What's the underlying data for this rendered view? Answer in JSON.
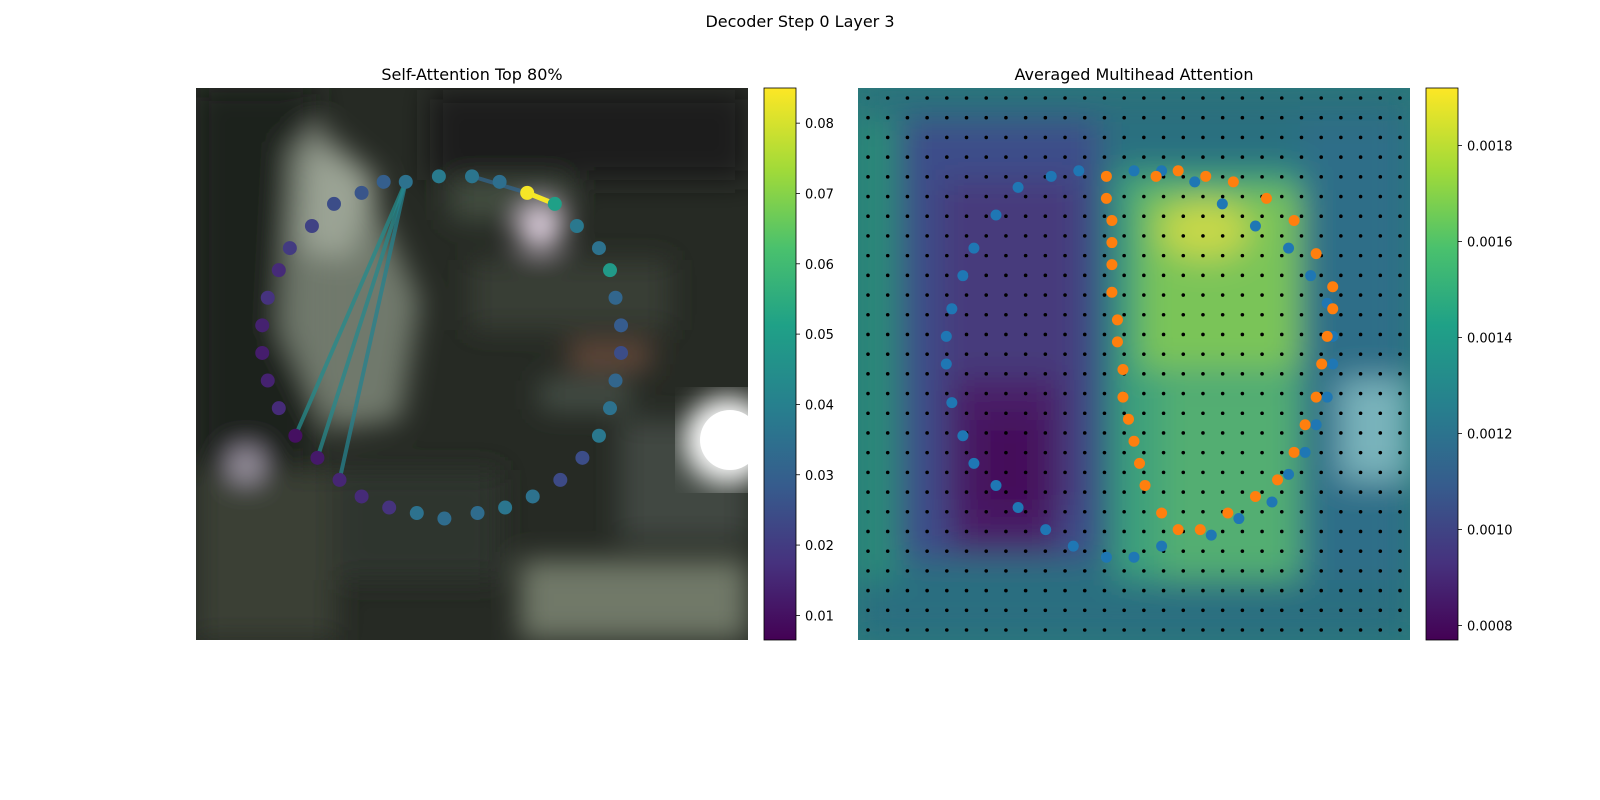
{
  "figure": {
    "title": "Decoder Step 0 Layer 3"
  },
  "chart_data": [
    {
      "type": "scatter",
      "title": "Self-Attention Top 80%",
      "background": "blurred photo image",
      "polygon_points": [
        {
          "x": 0.38,
          "y": 0.17,
          "v": 0.036
        },
        {
          "x": 0.44,
          "y": 0.16,
          "v": 0.039
        },
        {
          "x": 0.5,
          "y": 0.16,
          "v": 0.037
        },
        {
          "x": 0.55,
          "y": 0.17,
          "v": 0.035
        },
        {
          "x": 0.6,
          "y": 0.19,
          "v": 0.084
        },
        {
          "x": 0.65,
          "y": 0.21,
          "v": 0.051
        },
        {
          "x": 0.69,
          "y": 0.25,
          "v": 0.038
        },
        {
          "x": 0.73,
          "y": 0.29,
          "v": 0.036
        },
        {
          "x": 0.75,
          "y": 0.33,
          "v": 0.049
        },
        {
          "x": 0.76,
          "y": 0.38,
          "v": 0.032
        },
        {
          "x": 0.77,
          "y": 0.43,
          "v": 0.029
        },
        {
          "x": 0.77,
          "y": 0.48,
          "v": 0.025
        },
        {
          "x": 0.76,
          "y": 0.53,
          "v": 0.032
        },
        {
          "x": 0.75,
          "y": 0.58,
          "v": 0.036
        },
        {
          "x": 0.73,
          "y": 0.63,
          "v": 0.038
        },
        {
          "x": 0.7,
          "y": 0.67,
          "v": 0.025
        },
        {
          "x": 0.66,
          "y": 0.71,
          "v": 0.024
        },
        {
          "x": 0.61,
          "y": 0.74,
          "v": 0.036
        },
        {
          "x": 0.56,
          "y": 0.76,
          "v": 0.037
        },
        {
          "x": 0.51,
          "y": 0.77,
          "v": 0.034
        },
        {
          "x": 0.45,
          "y": 0.78,
          "v": 0.034
        },
        {
          "x": 0.4,
          "y": 0.77,
          "v": 0.036
        },
        {
          "x": 0.35,
          "y": 0.76,
          "v": 0.018
        },
        {
          "x": 0.3,
          "y": 0.74,
          "v": 0.016
        },
        {
          "x": 0.26,
          "y": 0.71,
          "v": 0.015
        },
        {
          "x": 0.22,
          "y": 0.67,
          "v": 0.012
        },
        {
          "x": 0.18,
          "y": 0.63,
          "v": 0.01
        },
        {
          "x": 0.15,
          "y": 0.58,
          "v": 0.016
        },
        {
          "x": 0.13,
          "y": 0.53,
          "v": 0.014
        },
        {
          "x": 0.12,
          "y": 0.48,
          "v": 0.013
        },
        {
          "x": 0.12,
          "y": 0.43,
          "v": 0.014
        },
        {
          "x": 0.13,
          "y": 0.38,
          "v": 0.018
        },
        {
          "x": 0.15,
          "y": 0.33,
          "v": 0.016
        },
        {
          "x": 0.17,
          "y": 0.29,
          "v": 0.02
        },
        {
          "x": 0.21,
          "y": 0.25,
          "v": 0.022
        },
        {
          "x": 0.25,
          "y": 0.21,
          "v": 0.025
        },
        {
          "x": 0.3,
          "y": 0.19,
          "v": 0.027
        },
        {
          "x": 0.34,
          "y": 0.17,
          "v": 0.03
        }
      ],
      "attention_edges": [
        {
          "from": 0,
          "to": 26,
          "v": 0.044
        },
        {
          "from": 0,
          "to": 25,
          "v": 0.043
        },
        {
          "from": 0,
          "to": 24,
          "v": 0.041
        },
        {
          "from": 4,
          "to": 5,
          "v": 0.084
        },
        {
          "from": 2,
          "to": 4,
          "v": 0.032
        }
      ],
      "colorbar": {
        "range": [
          0.0065,
          0.085
        ],
        "ticks": [
          "0.01",
          "0.02",
          "0.03",
          "0.04",
          "0.05",
          "0.06",
          "0.07",
          "0.08"
        ],
        "tick_values": [
          0.01,
          0.02,
          0.03,
          0.04,
          0.05,
          0.06,
          0.07,
          0.08
        ]
      }
    },
    {
      "type": "heatmap",
      "title": "Averaged Multihead Attention",
      "grid": {
        "rows": 28,
        "cols": 28
      },
      "series": [
        {
          "color": "#1f77b4",
          "points": [
            {
              "x": 0.5,
              "y": 0.15
            },
            {
              "x": 0.55,
              "y": 0.15
            },
            {
              "x": 0.61,
              "y": 0.17
            },
            {
              "x": 0.66,
              "y": 0.21
            },
            {
              "x": 0.72,
              "y": 0.25
            },
            {
              "x": 0.78,
              "y": 0.29
            },
            {
              "x": 0.82,
              "y": 0.34
            },
            {
              "x": 0.85,
              "y": 0.39
            },
            {
              "x": 0.86,
              "y": 0.45
            },
            {
              "x": 0.86,
              "y": 0.5
            },
            {
              "x": 0.85,
              "y": 0.56
            },
            {
              "x": 0.83,
              "y": 0.61
            },
            {
              "x": 0.81,
              "y": 0.66
            },
            {
              "x": 0.78,
              "y": 0.7
            },
            {
              "x": 0.75,
              "y": 0.75
            },
            {
              "x": 0.69,
              "y": 0.78
            },
            {
              "x": 0.64,
              "y": 0.81
            },
            {
              "x": 0.55,
              "y": 0.83
            },
            {
              "x": 0.5,
              "y": 0.85
            },
            {
              "x": 0.45,
              "y": 0.85
            },
            {
              "x": 0.39,
              "y": 0.83
            },
            {
              "x": 0.34,
              "y": 0.8
            },
            {
              "x": 0.29,
              "y": 0.76
            },
            {
              "x": 0.25,
              "y": 0.72
            },
            {
              "x": 0.21,
              "y": 0.68
            },
            {
              "x": 0.19,
              "y": 0.63
            },
            {
              "x": 0.17,
              "y": 0.57
            },
            {
              "x": 0.16,
              "y": 0.5
            },
            {
              "x": 0.16,
              "y": 0.45
            },
            {
              "x": 0.17,
              "y": 0.4
            },
            {
              "x": 0.19,
              "y": 0.34
            },
            {
              "x": 0.21,
              "y": 0.29
            },
            {
              "x": 0.25,
              "y": 0.23
            },
            {
              "x": 0.29,
              "y": 0.18
            },
            {
              "x": 0.35,
              "y": 0.16
            },
            {
              "x": 0.4,
              "y": 0.15
            }
          ]
        },
        {
          "color": "#ff7f0e",
          "points": [
            {
              "x": 0.54,
              "y": 0.16
            },
            {
              "x": 0.58,
              "y": 0.15
            },
            {
              "x": 0.63,
              "y": 0.16
            },
            {
              "x": 0.68,
              "y": 0.17
            },
            {
              "x": 0.74,
              "y": 0.2
            },
            {
              "x": 0.79,
              "y": 0.24
            },
            {
              "x": 0.83,
              "y": 0.3
            },
            {
              "x": 0.86,
              "y": 0.36
            },
            {
              "x": 0.86,
              "y": 0.4
            },
            {
              "x": 0.85,
              "y": 0.45
            },
            {
              "x": 0.84,
              "y": 0.5
            },
            {
              "x": 0.83,
              "y": 0.56
            },
            {
              "x": 0.81,
              "y": 0.61
            },
            {
              "x": 0.79,
              "y": 0.66
            },
            {
              "x": 0.76,
              "y": 0.71
            },
            {
              "x": 0.72,
              "y": 0.74
            },
            {
              "x": 0.67,
              "y": 0.77
            },
            {
              "x": 0.62,
              "y": 0.8
            },
            {
              "x": 0.58,
              "y": 0.8
            },
            {
              "x": 0.55,
              "y": 0.77
            },
            {
              "x": 0.52,
              "y": 0.72
            },
            {
              "x": 0.51,
              "y": 0.68
            },
            {
              "x": 0.5,
              "y": 0.64
            },
            {
              "x": 0.49,
              "y": 0.6
            },
            {
              "x": 0.48,
              "y": 0.56
            },
            {
              "x": 0.48,
              "y": 0.51
            },
            {
              "x": 0.47,
              "y": 0.46
            },
            {
              "x": 0.47,
              "y": 0.42
            },
            {
              "x": 0.46,
              "y": 0.37
            },
            {
              "x": 0.46,
              "y": 0.32
            },
            {
              "x": 0.46,
              "y": 0.28
            },
            {
              "x": 0.46,
              "y": 0.24
            },
            {
              "x": 0.45,
              "y": 0.2
            },
            {
              "x": 0.45,
              "y": 0.16
            }
          ]
        }
      ],
      "colorbar": {
        "range": [
          0.00077,
          0.00192
        ],
        "ticks": [
          "0.0008",
          "0.0010",
          "0.0012",
          "0.0014",
          "0.0016",
          "0.0018"
        ],
        "tick_values": [
          0.0008,
          0.001,
          0.0012,
          0.0014,
          0.0016,
          0.0018
        ]
      }
    }
  ]
}
